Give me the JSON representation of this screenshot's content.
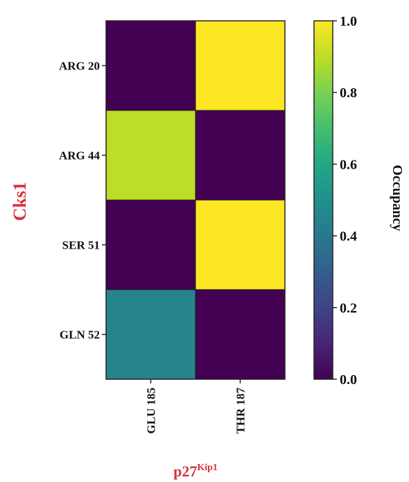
{
  "chart_data": {
    "type": "heatmap",
    "x_categories": [
      "GLU 185",
      "THR 187"
    ],
    "y_categories": [
      "ARG 20",
      "ARG 44",
      "SER 51",
      "GLN 52"
    ],
    "values": [
      [
        0.0,
        1.0
      ],
      [
        0.9,
        0.0
      ],
      [
        0.0,
        1.0
      ],
      [
        0.45,
        0.0
      ]
    ],
    "xlabel": "p27",
    "xlabel_superscript": "Kip1",
    "ylabel": "Cks1",
    "colorbar": {
      "label": "Occupancy",
      "range": [
        0.0,
        1.0
      ],
      "ticks": [
        "0.0",
        "0.2",
        "0.4",
        "0.6",
        "0.8",
        "1.0"
      ],
      "colormap": "viridis"
    },
    "colors": {
      "axis_title": "#d8323c"
    }
  }
}
